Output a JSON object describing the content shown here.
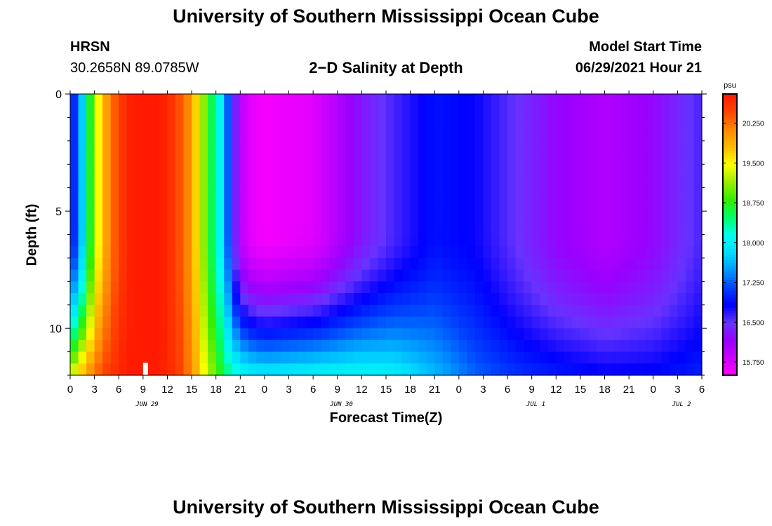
{
  "header": {
    "title": "University of Southern Mississippi Ocean Cube",
    "station": "HRSN",
    "coords": "30.2658N  89.0785W",
    "chart_title": "2−D Salinity at Depth",
    "start_label": "Model Start Time",
    "start_value": "06/29/2021 Hour 21"
  },
  "footer": {
    "title": "University of Southern Mississippi Ocean Cube"
  },
  "colors": {
    "scale": [
      "#ff00ff",
      "#cc00ff",
      "#9900ff",
      "#6633ff",
      "#0000ff",
      "#0044ff",
      "#0099ff",
      "#00ddff",
      "#00ffee",
      "#00ff66",
      "#33ee00",
      "#99ee00",
      "#ffff00",
      "#ffbb00",
      "#ff8800",
      "#ff4400",
      "#ff1a00"
    ]
  },
  "chart_data": {
    "type": "heatmap",
    "title": "2−D Salinity at Depth",
    "xlabel": "Forecast Time(Z)",
    "ylabel": "Depth (ft)",
    "x_ticks": [
      "0",
      "3",
      "6",
      "9",
      "12",
      "15",
      "18",
      "21",
      "0",
      "3",
      "6",
      "9",
      "12",
      "15",
      "18",
      "21",
      "0",
      "3",
      "6",
      "9",
      "12",
      "15",
      "18",
      "21",
      "0",
      "3",
      "6"
    ],
    "date_labels": [
      {
        "label": "JUN 29",
        "hour": 9.5
      },
      {
        "label": "JUN 30",
        "hour": 33.5
      },
      {
        "label": "JUL 1",
        "hour": 57.5
      },
      {
        "label": "JUL 2",
        "hour": 75.5
      }
    ],
    "x_range_hours": [
      0,
      78
    ],
    "y_ticks": [
      "0",
      "5",
      "10"
    ],
    "y_range_ft": [
      0,
      12
    ],
    "depth_rows_ft": [
      0.25,
      0.75,
      1.25,
      1.75,
      2.25,
      2.75,
      3.25,
      3.75,
      4.25,
      4.75,
      5.25,
      5.75,
      6.25,
      6.75,
      7.25,
      7.75,
      8.25,
      8.75,
      9.25,
      9.75,
      10.25,
      10.75,
      11.25,
      11.75
    ],
    "colorbar": {
      "unit": "psu",
      "min": 15.5,
      "max": 20.8,
      "tick_labels": [
        "20.250",
        "19.500",
        "18.750",
        "18.000",
        "17.250",
        "16.500",
        "15.750"
      ],
      "tick_values": [
        20.25,
        19.5,
        18.75,
        18.0,
        17.25,
        16.5,
        15.75
      ]
    },
    "profiles": [
      {
        "hour": 0,
        "surface": 16.8,
        "bottom": 19.4
      },
      {
        "hour": 1,
        "surface": 17.3,
        "bottom": 19.8
      },
      {
        "hour": 2,
        "surface": 18.2,
        "bottom": 20.1
      },
      {
        "hour": 3,
        "surface": 19.2,
        "bottom": 20.3
      },
      {
        "hour": 4,
        "surface": 19.8,
        "bottom": 20.5
      },
      {
        "hour": 5,
        "surface": 20.2,
        "bottom": 20.6
      },
      {
        "hour": 6,
        "surface": 20.5,
        "bottom": 20.7
      },
      {
        "hour": 7,
        "surface": 20.7,
        "bottom": 20.8
      },
      {
        "hour": 8,
        "surface": 20.8,
        "bottom": 20.8
      },
      {
        "hour": 9,
        "surface": 20.8,
        "bottom": 20.8
      },
      {
        "hour": 10,
        "surface": 20.8,
        "bottom": 20.8
      },
      {
        "hour": 11,
        "surface": 20.8,
        "bottom": 20.8
      },
      {
        "hour": 12,
        "surface": 20.7,
        "bottom": 20.7
      },
      {
        "hour": 13,
        "surface": 20.5,
        "bottom": 20.6
      },
      {
        "hour": 14,
        "surface": 20.3,
        "bottom": 20.4
      },
      {
        "hour": 15,
        "surface": 20.0,
        "bottom": 20.1
      },
      {
        "hour": 16,
        "surface": 19.4,
        "bottom": 19.7
      },
      {
        "hour": 17,
        "surface": 18.8,
        "bottom": 19.3
      },
      {
        "hour": 18,
        "surface": 18.3,
        "bottom": 19.0
      },
      {
        "hour": 19,
        "surface": 17.8,
        "bottom": 18.6
      },
      {
        "hour": 20,
        "surface": 16.7,
        "bottom": 18.4
      },
      {
        "hour": 21,
        "surface": 16.0,
        "bottom": 18.3
      },
      {
        "hour": 22,
        "surface": 15.7,
        "bottom": 18.2
      },
      {
        "hour": 24,
        "surface": 15.55,
        "bottom": 18.1
      },
      {
        "hour": 30,
        "surface": 15.7,
        "bottom": 18.2
      },
      {
        "hour": 36,
        "surface": 16.3,
        "bottom": 18.2
      },
      {
        "hour": 40,
        "surface": 16.6,
        "bottom": 18.1
      },
      {
        "hour": 45,
        "surface": 16.9,
        "bottom": 17.7
      },
      {
        "hour": 50,
        "surface": 16.8,
        "bottom": 17.3
      },
      {
        "hour": 55,
        "surface": 16.5,
        "bottom": 17.1
      },
      {
        "hour": 60,
        "surface": 16.2,
        "bottom": 17.0
      },
      {
        "hour": 66,
        "surface": 16.0,
        "bottom": 16.9
      },
      {
        "hour": 72,
        "surface": 16.2,
        "bottom": 16.9
      },
      {
        "hour": 78,
        "surface": 16.6,
        "bottom": 17.0
      }
    ]
  }
}
